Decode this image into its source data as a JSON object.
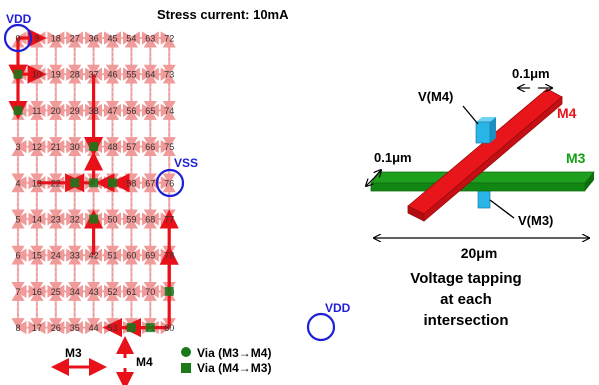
{
  "grid": {
    "title": "Stress current: 10mA",
    "vdd_top_label": "VDD",
    "vss_label": "VSS",
    "vdd_bottom_label": "VDD",
    "node_labels": [
      [
        "0",
        "9",
        "18",
        "27",
        "36",
        "45",
        "54",
        "63",
        "72"
      ],
      [
        "1",
        "10",
        "19",
        "28",
        "37",
        "46",
        "55",
        "64",
        "73"
      ],
      [
        "2",
        "11",
        "20",
        "29",
        "38",
        "47",
        "56",
        "65",
        "74"
      ],
      [
        "3",
        "12",
        "21",
        "30",
        "39",
        "48",
        "57",
        "66",
        "75"
      ],
      [
        "4",
        "13",
        "22",
        "31",
        "40",
        "49",
        "58",
        "67",
        "76"
      ],
      [
        "5",
        "14",
        "23",
        "32",
        "41",
        "50",
        "59",
        "68",
        "77"
      ],
      [
        "6",
        "15",
        "24",
        "33",
        "42",
        "51",
        "60",
        "69",
        "78"
      ],
      [
        "7",
        "16",
        "25",
        "34",
        "43",
        "52",
        "61",
        "70",
        "79"
      ],
      [
        "8",
        "17",
        "26",
        "35",
        "44",
        "53",
        "62",
        "71",
        "80"
      ]
    ],
    "legend": {
      "m3_label": "M3",
      "m4_label": "M4",
      "via_m3_m4": "Via (M3→M4)",
      "via_m4_m3": "Via (M4→M3)"
    },
    "colors": {
      "arrow_light": "#f4a3a3",
      "arrow_strong": "#e8111a",
      "via": "#1a7a1a",
      "circle": "#1f1fd6",
      "gridline": "#888888"
    }
  },
  "schematic": {
    "v_m4_label": "V(M4)",
    "v_m3_label": "V(M3)",
    "m4_label": "M4",
    "m3_label": "M3",
    "width_top": "0.1μm",
    "width_left": "0.1μm",
    "length_label": "20μm",
    "caption_lines": [
      "Voltage tapping",
      "at each",
      "intersection"
    ],
    "colors": {
      "m4": "#e8151b",
      "m3": "#14a014",
      "via": "#29b5e8"
    }
  }
}
